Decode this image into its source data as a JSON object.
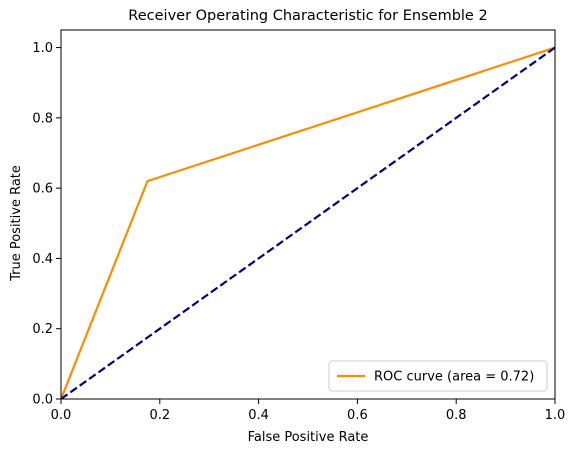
{
  "chart_data": {
    "type": "line",
    "title": "Receiver Operating Characteristic for Ensemble 2",
    "xlabel": "False Positive Rate",
    "ylabel": "True Positive Rate",
    "xlim": [
      0.0,
      1.0
    ],
    "ylim": [
      0.0,
      1.05
    ],
    "xticks": [
      0.0,
      0.2,
      0.4,
      0.6,
      0.8,
      1.0
    ],
    "yticks": [
      0.0,
      0.2,
      0.4,
      0.6,
      0.8,
      1.0
    ],
    "xtick_labels": [
      "0.0",
      "0.2",
      "0.4",
      "0.6",
      "0.8",
      "1.0"
    ],
    "ytick_labels": [
      "0.0",
      "0.2",
      "0.4",
      "0.6",
      "0.8",
      "1.0"
    ],
    "grid": false,
    "legend_position": "lower right",
    "series": [
      {
        "name": "ROC curve (area = 0.72)",
        "color": "#ff8c00",
        "style": "solid",
        "x": [
          0.0,
          0.175,
          1.0
        ],
        "y": [
          0.0,
          0.62,
          1.0
        ]
      },
      {
        "color": "#000080",
        "style": "dashed",
        "x": [
          0.0,
          1.0
        ],
        "y": [
          0.0,
          1.0
        ]
      }
    ]
  }
}
